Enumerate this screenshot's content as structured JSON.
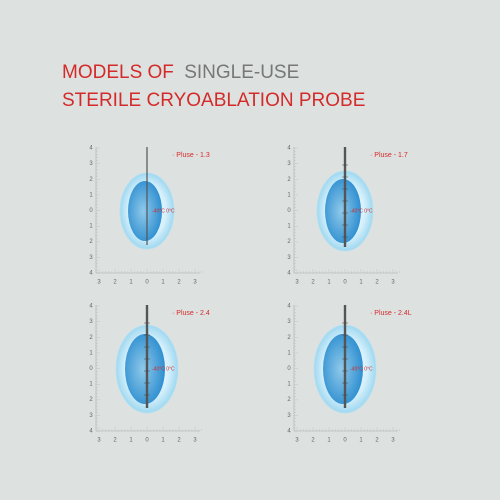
{
  "title": {
    "line1_red": "MODELS OF",
    "line1_gray": "SINGLE-USE",
    "line2": "STERILE CRYOABLATION PROBE"
  },
  "axes": {
    "y_labels": [
      "4",
      "3",
      "2",
      "1",
      "0",
      "1",
      "2",
      "3",
      "4"
    ],
    "x_labels": [
      "3",
      "2",
      "1",
      "0",
      "1",
      "2",
      "3"
    ]
  },
  "panels": [
    {
      "label": "· Pluse - 1.3",
      "temps": "-40°C 0°C"
    },
    {
      "label": "· Pluse - 1.7",
      "temps": "-40°C 0°C"
    },
    {
      "label": "· Pluse - 2.4",
      "temps": "-40°C 0°C"
    },
    {
      "label": "· Pluse - 2.4L",
      "temps": "-40°C 0°C"
    }
  ]
}
